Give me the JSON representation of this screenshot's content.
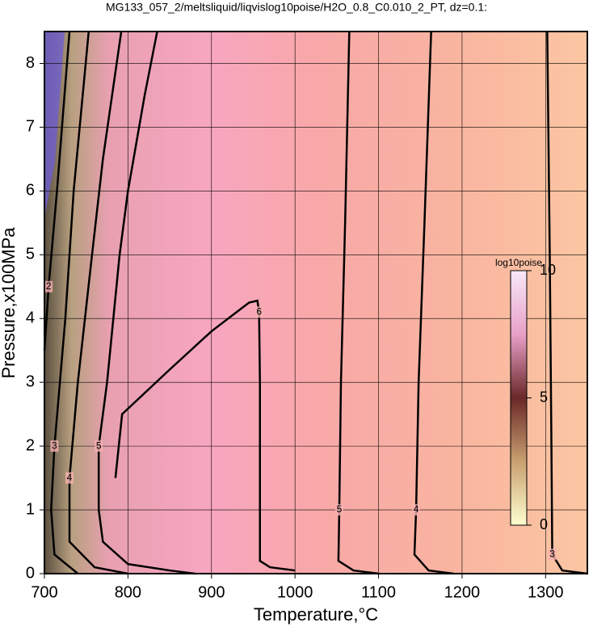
{
  "chart_data": {
    "type": "contour",
    "title": "MG133_057_2/meltsliquid/liqvislog10poise/H2O_0.8_C0.010_2_PT, dz=0.1:",
    "xlabel": "Temperature,°C",
    "ylabel": "Pressure,x100MPa",
    "xlim": [
      700,
      1350
    ],
    "ylim": [
      0,
      8.5
    ],
    "xticks": [
      700,
      800,
      900,
      1000,
      1100,
      1200,
      1300
    ],
    "yticks": [
      0,
      1,
      2,
      3,
      4,
      5,
      6,
      7,
      8
    ],
    "grid": true,
    "colorbar": {
      "title": "log10poise",
      "lim": [
        0,
        10
      ],
      "ticks": [
        0,
        5,
        10
      ]
    },
    "contours": [
      {
        "level": 3,
        "x": [
          1302,
          1305,
          1307,
          1308,
          1320,
          1350
        ],
        "y": [
          8.5,
          5,
          2,
          0.3,
          0.05,
          0
        ]
      },
      {
        "level": 4,
        "x": [
          1163,
          1155,
          1148,
          1145,
          1143,
          1160,
          1190
        ],
        "y": [
          8.5,
          5.5,
          3,
          1,
          0.3,
          0.05,
          0
        ]
      },
      {
        "level": 5,
        "x": [
          1065,
          1060,
          1055,
          1053,
          1052,
          1070,
          1100
        ],
        "y": [
          8.5,
          5.5,
          3,
          1,
          0.2,
          0.05,
          0
        ]
      },
      {
        "level": 6,
        "x": [
          785,
          793,
          850,
          900,
          945,
          955,
          957,
          958,
          958,
          958,
          970,
          1000
        ],
        "y": [
          1.5,
          2.5,
          3.2,
          3.8,
          4.25,
          4.28,
          4.1,
          3,
          1,
          0.2,
          0.1,
          0.05
        ]
      },
      {
        "level": 5,
        "x": [
          835,
          820,
          800,
          790,
          775,
          765,
          765,
          770,
          800,
          850,
          880
        ],
        "y": [
          8.5,
          7.5,
          6,
          5,
          3,
          2,
          1,
          0.5,
          0.15,
          0.05,
          0
        ]
      },
      {
        "level": 4,
        "x": [
          792,
          770,
          757,
          740,
          730,
          730,
          760,
          800
        ],
        "y": [
          8.5,
          6.5,
          5,
          3,
          1.5,
          0.5,
          0.1,
          0
        ]
      },
      {
        "level": 3,
        "x": [
          753,
          735,
          725,
          712,
          708,
          712,
          740
        ],
        "y": [
          8.5,
          6,
          4,
          2,
          1,
          0.3,
          0
        ]
      },
      {
        "level": 2,
        "x": [
          730,
          715,
          705,
          700
        ],
        "y": [
          8.5,
          6,
          4.5,
          3.5
        ]
      }
    ]
  }
}
